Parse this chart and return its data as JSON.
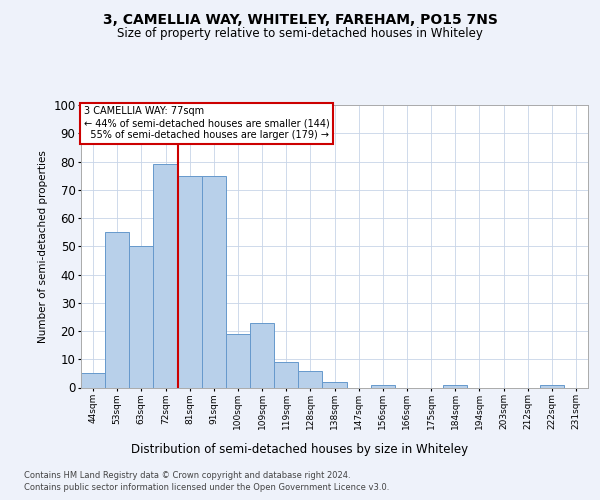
{
  "title": "3, CAMELLIA WAY, WHITELEY, FAREHAM, PO15 7NS",
  "subtitle": "Size of property relative to semi-detached houses in Whiteley",
  "xlabel": "Distribution of semi-detached houses by size in Whiteley",
  "ylabel": "Number of semi-detached properties",
  "categories": [
    "44sqm",
    "53sqm",
    "63sqm",
    "72sqm",
    "81sqm",
    "91sqm",
    "100sqm",
    "109sqm",
    "119sqm",
    "128sqm",
    "138sqm",
    "147sqm",
    "156sqm",
    "166sqm",
    "175sqm",
    "184sqm",
    "194sqm",
    "203sqm",
    "212sqm",
    "222sqm",
    "231sqm"
  ],
  "values": [
    5,
    55,
    50,
    79,
    75,
    75,
    19,
    23,
    9,
    6,
    2,
    0,
    1,
    0,
    0,
    1,
    0,
    0,
    0,
    1,
    0
  ],
  "bar_color": "#b8d0ea",
  "bar_edge_color": "#6699cc",
  "property_bin_index": 3,
  "property_label": "3 CAMELLIA WAY: 77sqm",
  "smaller_pct": 44,
  "smaller_count": 144,
  "larger_pct": 55,
  "larger_count": 179,
  "vline_color": "#cc0000",
  "ylim": [
    0,
    100
  ],
  "yticks": [
    0,
    10,
    20,
    30,
    40,
    50,
    60,
    70,
    80,
    90,
    100
  ],
  "footer_line1": "Contains HM Land Registry data © Crown copyright and database right 2024.",
  "footer_line2": "Contains public sector information licensed under the Open Government Licence v3.0.",
  "bg_color": "#eef2fa",
  "plot_bg_color": "#ffffff",
  "grid_color": "#c8d4e8"
}
